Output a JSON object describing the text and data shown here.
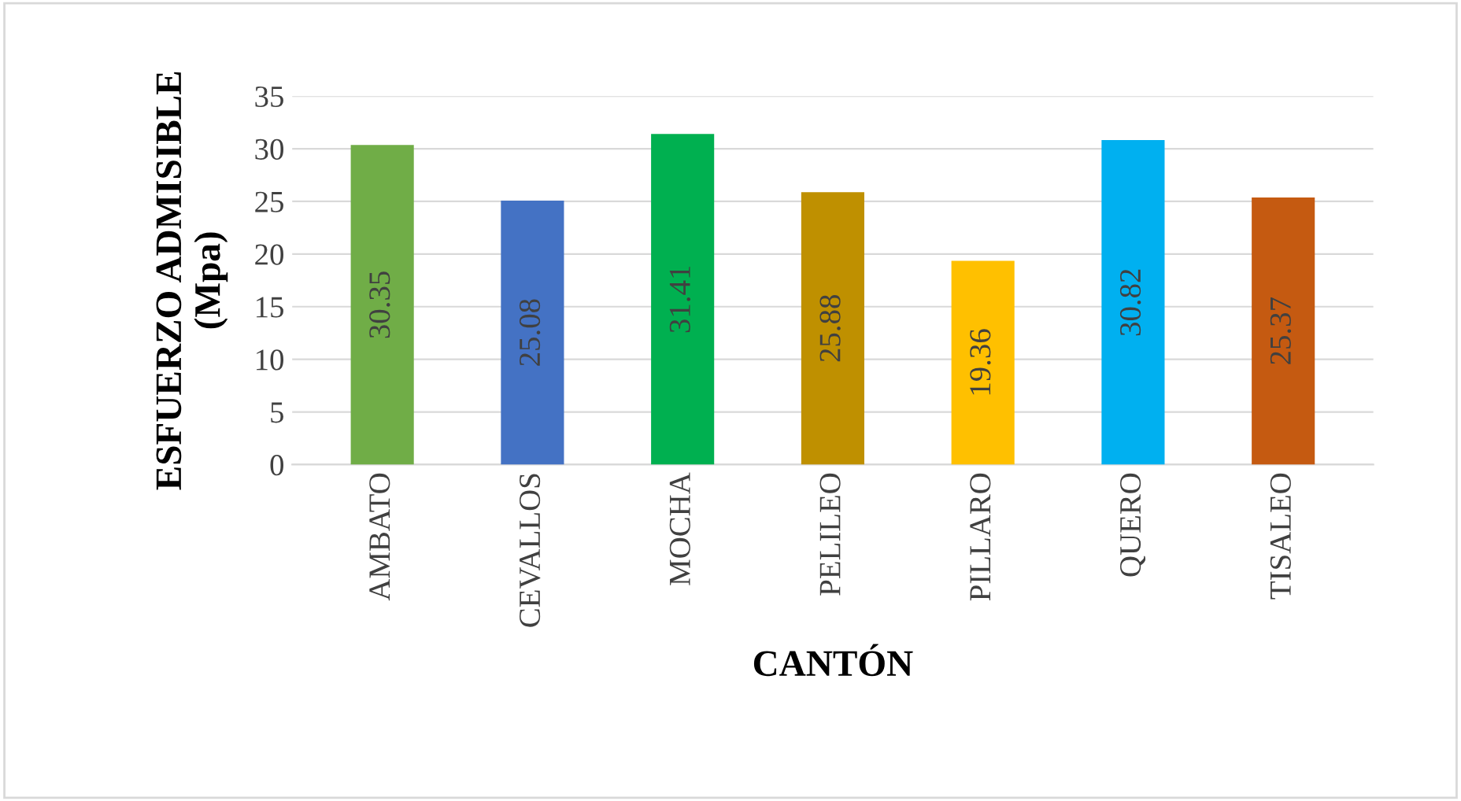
{
  "chart_data": {
    "type": "bar",
    "xlabel": "CANTÓN",
    "ylabel": "ESFUERZO ADMISIBLE\n(Mpa)",
    "categories": [
      "AMBATO",
      "CEVALLOS",
      "MOCHA",
      "PELILEO",
      "PILLARO",
      "QUERO",
      "TISALEO"
    ],
    "values": [
      30.35,
      25.08,
      31.41,
      25.88,
      19.36,
      30.82,
      25.37
    ],
    "colors": [
      "#70ad47",
      "#4472c4",
      "#00b050",
      "#bf9000",
      "#ffc000",
      "#00b0f0",
      "#c55a11"
    ],
    "ylim": [
      0,
      35
    ],
    "yticks": [
      0,
      5,
      10,
      15,
      20,
      25,
      30,
      35
    ],
    "grid": "y",
    "data_labels": true
  }
}
